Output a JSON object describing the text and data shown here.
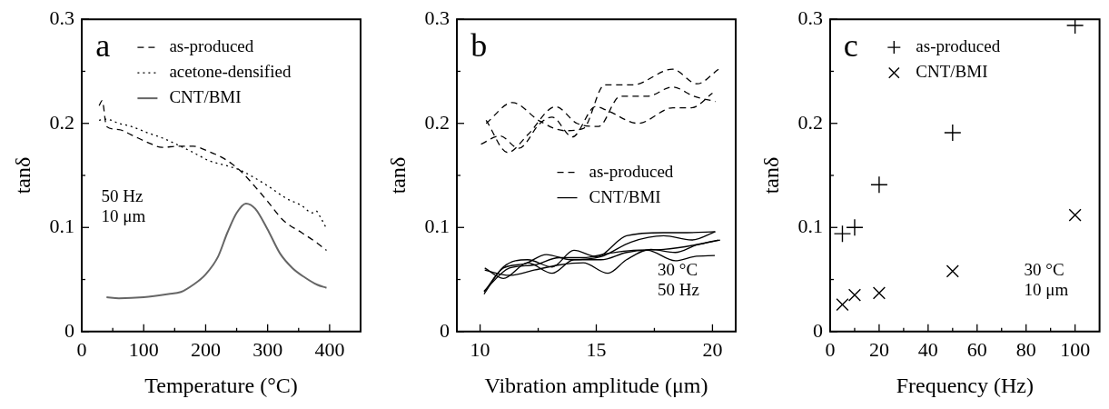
{
  "chart_data": [
    {
      "type": "line",
      "title": "a",
      "xlabel": "Temperature (°C)",
      "ylabel": "tanδ",
      "annotations": [
        "50 Hz",
        "10 μm"
      ],
      "xlim": [
        0,
        450
      ],
      "xticks": [
        0,
        {
          "value": 50,
          "label": null
        },
        100,
        {
          "value": 150,
          "label": null
        },
        200,
        {
          "value": 250,
          "label": null
        },
        300,
        {
          "value": 350,
          "label": null
        },
        400
      ],
      "ylim": [
        0,
        0.3
      ],
      "yticks": [
        0,
        {
          "value": 0.05,
          "label": null
        },
        0.1,
        {
          "value": 0.15,
          "label": null
        },
        0.2,
        {
          "value": 0.25,
          "label": null
        },
        0.3
      ],
      "legend": "top",
      "series": [
        {
          "name": "as-produced",
          "color": "#000000",
          "line_style": "dashed",
          "x": [
            28,
            33,
            40,
            60,
            80,
            105,
            130,
            155,
            180,
            205,
            230,
            255,
            280,
            300,
            325,
            355,
            380,
            395
          ],
          "values": [
            0.217,
            0.222,
            0.197,
            0.194,
            0.189,
            0.182,
            0.177,
            0.178,
            0.178,
            0.173,
            0.166,
            0.155,
            0.139,
            0.125,
            0.107,
            0.095,
            0.085,
            0.078
          ]
        },
        {
          "name": "acetone-densified",
          "color": "#000000",
          "line_style": "dotted",
          "x": [
            28,
            40,
            60,
            80,
            106,
            130,
            156,
            180,
            206,
            230,
            256,
            275,
            300,
            330,
            355,
            372,
            378,
            385,
            395
          ],
          "values": [
            0.203,
            0.204,
            0.2,
            0.197,
            0.191,
            0.186,
            0.179,
            0.172,
            0.164,
            0.16,
            0.155,
            0.149,
            0.14,
            0.128,
            0.121,
            0.114,
            0.116,
            0.11,
            0.099
          ]
        },
        {
          "name": "CNT/BMI",
          "color": "#666666",
          "line_style": "solid",
          "x": [
            40,
            60,
            100,
            140,
            160,
            180,
            200,
            220,
            235,
            250,
            265,
            280,
            300,
            320,
            340,
            360,
            380,
            395
          ],
          "values": [
            0.033,
            0.032,
            0.033,
            0.036,
            0.038,
            0.045,
            0.055,
            0.072,
            0.095,
            0.114,
            0.123,
            0.118,
            0.098,
            0.075,
            0.061,
            0.052,
            0.045,
            0.042
          ]
        }
      ]
    },
    {
      "type": "line",
      "title": "b",
      "xlabel": "Vibration amplitude (μm)",
      "ylabel": "tanδ",
      "annotations": [
        "30 °C",
        "50 Hz"
      ],
      "xlim": [
        9,
        21
      ],
      "xticks": [
        10,
        {
          "value": 12.5,
          "label": null
        },
        15,
        {
          "value": 17.5,
          "label": null
        },
        20
      ],
      "ylim": [
        0,
        0.3
      ],
      "yticks": [
        0,
        {
          "value": 0.05,
          "label": null
        },
        0.1,
        {
          "value": 0.15,
          "label": null
        },
        0.2,
        {
          "value": 0.25,
          "label": null
        },
        0.3
      ],
      "legend": "right",
      "series": [
        {
          "name": "as-produced",
          "color": "#000000",
          "line_style": "dashed",
          "x": [
            10.04,
            10.86,
            11.66,
            12.58,
            13.1,
            13.97,
            14.97,
            15.5,
            16.8,
            18.3,
            19.1,
            20
          ],
          "values": [
            0.18,
            0.188,
            0.176,
            0.2,
            0.206,
            0.187,
            0.216,
            0.212,
            0.2,
            0.215,
            0.215,
            0.229
          ]
        },
        {
          "color": "#000000",
          "line_style": "dashed",
          "x": [
            10.26,
            11.39,
            12.58,
            13.64,
            14.44,
            15.36,
            16.56,
            18.28,
            19.34,
            20.26
          ],
          "values": [
            0.2,
            0.22,
            0.202,
            0.193,
            0.195,
            0.237,
            0.237,
            0.252,
            0.238,
            0.252
          ]
        },
        {
          "color": "#000000",
          "line_style": "dashed",
          "x": [
            10.26,
            11.19,
            12.05,
            13.25,
            14.17,
            15.1,
            16.03,
            17.2,
            18.28,
            19.2,
            20.13
          ],
          "values": [
            0.203,
            0.172,
            0.189,
            0.216,
            0.2,
            0.197,
            0.226,
            0.226,
            0.235,
            0.226,
            0.221
          ]
        },
        {
          "name": "CNT/BMI",
          "color": "#000000",
          "line_style": "solid",
          "x": [
            10.17,
            11,
            12.05,
            13.1,
            14.04,
            15,
            16.3,
            17.9,
            18.9,
            20.1
          ],
          "values": [
            0.036,
            0.062,
            0.069,
            0.062,
            0.078,
            0.072,
            0.092,
            0.095,
            0.095,
            0.096
          ]
        },
        {
          "color": "#000000",
          "line_style": "solid",
          "x": [
            10.17,
            11,
            11.9,
            12.85,
            13.9,
            15.2,
            16.5,
            17.9,
            19.1,
            20.13
          ],
          "values": [
            0.038,
            0.061,
            0.065,
            0.074,
            0.069,
            0.072,
            0.086,
            0.092,
            0.088,
            0.096
          ]
        },
        {
          "color": "#000000",
          "line_style": "solid",
          "x": [
            10.2,
            11,
            12.05,
            13.1,
            14.04,
            15.2,
            16.3,
            17.2,
            18.4,
            19.2,
            20.1
          ],
          "values": [
            0.061,
            0.051,
            0.066,
            0.056,
            0.069,
            0.069,
            0.076,
            0.078,
            0.068,
            0.072,
            0.073
          ]
        },
        {
          "color": "#000000",
          "line_style": "solid",
          "x": [
            10.2,
            11.26,
            12.32,
            13.4,
            14.44,
            15.5,
            16.3,
            17.35,
            18.4,
            19.3,
            20.33
          ],
          "values": [
            0.059,
            0.054,
            0.059,
            0.064,
            0.066,
            0.056,
            0.069,
            0.079,
            0.076,
            0.083,
            0.088
          ]
        },
        {
          "color": "#000000",
          "line_style": "solid",
          "x": [
            10.17,
            11.26,
            12.32,
            13.4,
            14.44,
            15.5,
            16.6,
            17.9,
            19.2,
            20.26
          ],
          "values": [
            0.039,
            0.061,
            0.064,
            0.071,
            0.071,
            0.075,
            0.078,
            0.079,
            0.083,
            0.088
          ]
        }
      ]
    },
    {
      "type": "scatter",
      "title": "c",
      "xlabel": "Frequency (Hz)",
      "ylabel": "tanδ",
      "annotations": [
        "30 °C",
        "10 μm"
      ],
      "xlim": [
        0,
        110
      ],
      "xticks": [
        0,
        {
          "value": 10,
          "label": null
        },
        20,
        {
          "value": 30,
          "label": null
        },
        40,
        {
          "value": 50,
          "label": null
        },
        60,
        {
          "value": 70,
          "label": null
        },
        80,
        {
          "value": 90,
          "label": null
        },
        100
      ],
      "ylim": [
        0,
        0.3
      ],
      "yticks": [
        0,
        {
          "value": 0.05,
          "label": null
        },
        0.1,
        {
          "value": 0.15,
          "label": null
        },
        0.2,
        {
          "value": 0.25,
          "label": null
        },
        0.3
      ],
      "legend": "top",
      "series": [
        {
          "name": "as-produced",
          "color": "#000000",
          "marker": "cross",
          "x": [
            5,
            10,
            20,
            50,
            100
          ],
          "values": [
            0.094,
            0.1,
            0.141,
            0.191,
            0.294
          ]
        },
        {
          "name": "CNT/BMI",
          "color": "#000000",
          "marker": "x",
          "x": [
            5,
            10,
            20,
            50,
            100
          ],
          "values": [
            0.026,
            0.035,
            0.037,
            0.058,
            0.112
          ]
        }
      ]
    }
  ]
}
